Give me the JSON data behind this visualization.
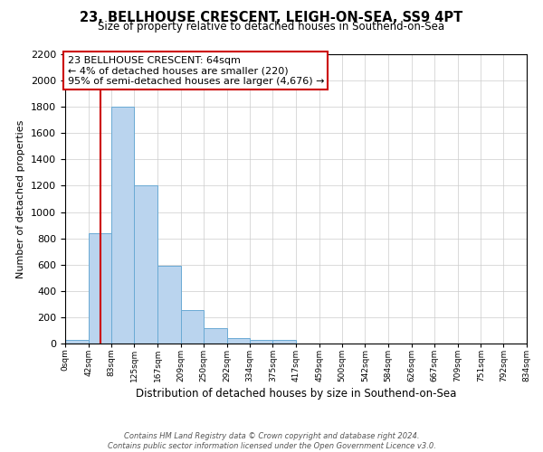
{
  "title": "23, BELLHOUSE CRESCENT, LEIGH-ON-SEA, SS9 4PT",
  "subtitle": "Size of property relative to detached houses in Southend-on-Sea",
  "xlabel": "Distribution of detached houses by size in Southend-on-Sea",
  "ylabel": "Number of detached properties",
  "bin_edges": [
    0,
    42,
    83,
    125,
    167,
    209,
    250,
    292,
    334,
    375,
    417,
    459,
    500,
    542,
    584,
    626,
    667,
    709,
    751,
    792,
    834
  ],
  "bin_labels": [
    "0sqm",
    "42sqm",
    "83sqm",
    "125sqm",
    "167sqm",
    "209sqm",
    "250sqm",
    "292sqm",
    "334sqm",
    "375sqm",
    "417sqm",
    "459sqm",
    "500sqm",
    "542sqm",
    "584sqm",
    "626sqm",
    "667sqm",
    "709sqm",
    "751sqm",
    "792sqm",
    "834sqm"
  ],
  "counts": [
    25,
    840,
    1800,
    1200,
    590,
    255,
    120,
    40,
    30,
    25,
    0,
    0,
    0,
    0,
    0,
    0,
    0,
    0,
    0,
    0
  ],
  "bar_color": "#bad4ee",
  "bar_edge_color": "#6aaad4",
  "red_line_x": 64,
  "ylim": [
    0,
    2200
  ],
  "yticks": [
    0,
    200,
    400,
    600,
    800,
    1000,
    1200,
    1400,
    1600,
    1800,
    2000,
    2200
  ],
  "annotation_title": "23 BELLHOUSE CRESCENT: 64sqm",
  "annotation_line1": "← 4% of detached houses are smaller (220)",
  "annotation_line2": "95% of semi-detached houses are larger (4,676) →",
  "annotation_box_color": "#ffffff",
  "annotation_box_edge": "#cc0000",
  "footer1": "Contains HM Land Registry data © Crown copyright and database right 2024.",
  "footer2": "Contains public sector information licensed under the Open Government Licence v3.0.",
  "background_color": "#ffffff",
  "grid_color": "#cccccc"
}
